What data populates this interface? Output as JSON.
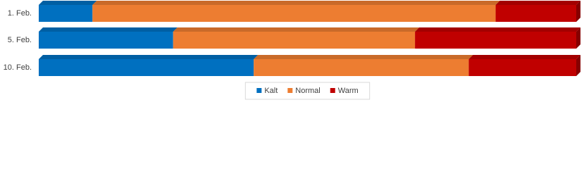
{
  "chart_data": {
    "type": "stacked-bar-3d",
    "categories": [
      "1. Feb.",
      "5. Feb.",
      "10. Feb."
    ],
    "series": [
      {
        "name": "Kalt",
        "color": "#0070c0",
        "values": [
          10,
          25,
          40
        ]
      },
      {
        "name": "Normal",
        "color": "#ed7d31",
        "values": [
          75,
          45,
          40
        ]
      },
      {
        "name": "Warm",
        "color": "#c00000",
        "values": [
          15,
          30,
          20
        ]
      }
    ],
    "xlim": [
      0,
      100
    ],
    "legend": "bottom"
  }
}
